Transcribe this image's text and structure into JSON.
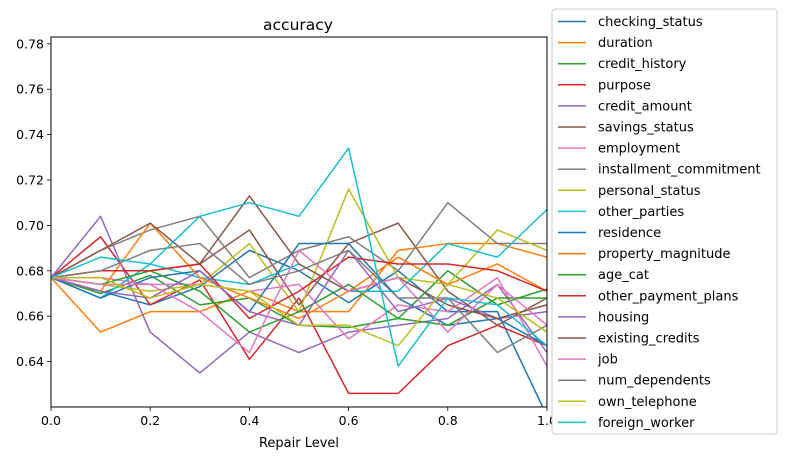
{
  "chart_data": {
    "type": "line",
    "title": "accuracy",
    "xlabel": "Repair Level",
    "ylabel": "",
    "xlim": [
      0.0,
      1.0
    ],
    "ylim": [
      0.62,
      0.783
    ],
    "x": [
      0.0,
      0.1,
      0.2,
      0.3,
      0.4,
      0.5,
      0.6,
      0.7,
      0.8,
      0.9,
      1.0
    ],
    "xticks": [
      "0.0",
      "0.2",
      "0.4",
      "0.6",
      "0.8",
      "1.0"
    ],
    "yticks": [
      "0.64",
      "0.66",
      "0.68",
      "0.70",
      "0.72",
      "0.74",
      "0.76",
      "0.78"
    ],
    "grid": false,
    "legend_position": "outside-right",
    "series": [
      {
        "name": "checking_status",
        "color": "#1f77b4",
        "values": [
          0.677,
          0.671,
          0.665,
          0.673,
          0.689,
          0.68,
          0.666,
          0.68,
          0.662,
          0.662,
          0.616
        ]
      },
      {
        "name": "duration",
        "color": "#ff7f0e",
        "values": [
          0.677,
          0.653,
          0.662,
          0.662,
          0.671,
          0.662,
          0.662,
          0.689,
          0.692,
          0.692,
          0.686
        ]
      },
      {
        "name": "credit_history",
        "color": "#2ca02c",
        "values": [
          0.677,
          0.67,
          0.678,
          0.665,
          0.668,
          0.656,
          0.655,
          0.659,
          0.68,
          0.665,
          0.672
        ]
      },
      {
        "name": "purpose",
        "color": "#d62728",
        "values": [
          0.677,
          0.695,
          0.665,
          0.676,
          0.641,
          0.668,
          0.626,
          0.626,
          0.647,
          0.656,
          0.647
        ]
      },
      {
        "name": "credit_amount",
        "color": "#9467bd",
        "values": [
          0.677,
          0.704,
          0.653,
          0.635,
          0.653,
          0.644,
          0.653,
          0.656,
          0.659,
          0.674,
          0.644
        ]
      },
      {
        "name": "savings_status",
        "color": "#8c564b",
        "values": [
          0.677,
          0.68,
          0.68,
          0.683,
          0.698,
          0.665,
          0.692,
          0.701,
          0.671,
          0.656,
          0.668
        ]
      },
      {
        "name": "employment",
        "color": "#e377c2",
        "values": [
          0.677,
          0.677,
          0.674,
          0.674,
          0.671,
          0.674,
          0.65,
          0.665,
          0.662,
          0.677,
          0.638
        ]
      },
      {
        "name": "installment_commitment",
        "color": "#7f7f7f",
        "values": [
          0.677,
          0.689,
          0.698,
          0.704,
          0.677,
          0.689,
          0.695,
          0.68,
          0.71,
          0.692,
          0.692
        ]
      },
      {
        "name": "personal_status",
        "color": "#bcbd22",
        "values": [
          0.677,
          0.674,
          0.671,
          0.674,
          0.692,
          0.662,
          0.716,
          0.677,
          0.674,
          0.698,
          0.689
        ]
      },
      {
        "name": "other_parties",
        "color": "#17becf",
        "values": [
          0.677,
          0.668,
          0.683,
          0.677,
          0.674,
          0.683,
          0.671,
          0.671,
          0.692,
          0.686,
          0.707
        ]
      },
      {
        "name": "residence",
        "color": "#1f77b4",
        "values": [
          0.677,
          0.668,
          0.677,
          0.68,
          0.662,
          0.692,
          0.692,
          0.668,
          0.656,
          0.659,
          0.647
        ]
      },
      {
        "name": "property_magnitude",
        "color": "#ff7f0e",
        "values": [
          0.677,
          0.671,
          0.701,
          0.677,
          0.668,
          0.659,
          0.671,
          0.686,
          0.674,
          0.683,
          0.671
        ]
      },
      {
        "name": "age_cat",
        "color": "#2ca02c",
        "values": [
          0.677,
          0.674,
          0.68,
          0.671,
          0.653,
          0.662,
          0.674,
          0.659,
          0.656,
          0.668,
          0.668
        ]
      },
      {
        "name": "other_payment_plans",
        "color": "#d62728",
        "values": [
          0.677,
          0.68,
          0.68,
          0.683,
          0.659,
          0.671,
          0.686,
          0.683,
          0.683,
          0.68,
          0.671
        ]
      },
      {
        "name": "housing",
        "color": "#9467bd",
        "values": [
          0.677,
          0.671,
          0.668,
          0.68,
          0.662,
          0.656,
          0.689,
          0.662,
          0.668,
          0.659,
          0.662
        ]
      },
      {
        "name": "existing_credits",
        "color": "#8c564b",
        "values": [
          0.677,
          0.689,
          0.701,
          0.683,
          0.713,
          0.683,
          0.671,
          0.677,
          0.665,
          0.659,
          0.665
        ]
      },
      {
        "name": "job",
        "color": "#e377c2",
        "values": [
          0.677,
          0.674,
          0.674,
          0.662,
          0.644,
          0.689,
          0.671,
          0.677,
          0.653,
          0.674,
          0.656
        ]
      },
      {
        "name": "num_dependents",
        "color": "#7f7f7f",
        "values": [
          0.677,
          0.68,
          0.689,
          0.692,
          0.674,
          0.68,
          0.689,
          0.668,
          0.668,
          0.644,
          0.656
        ]
      },
      {
        "name": "own_telephone",
        "color": "#bcbd22",
        "values": [
          0.677,
          0.677,
          0.668,
          0.674,
          0.671,
          0.656,
          0.656,
          0.647,
          0.674,
          0.668,
          0.653
        ]
      },
      {
        "name": "foreign_worker",
        "color": "#17becf",
        "values": [
          0.677,
          0.686,
          0.683,
          0.704,
          0.71,
          0.704,
          0.734,
          0.638,
          0.668,
          0.665,
          0.647
        ]
      }
    ]
  }
}
